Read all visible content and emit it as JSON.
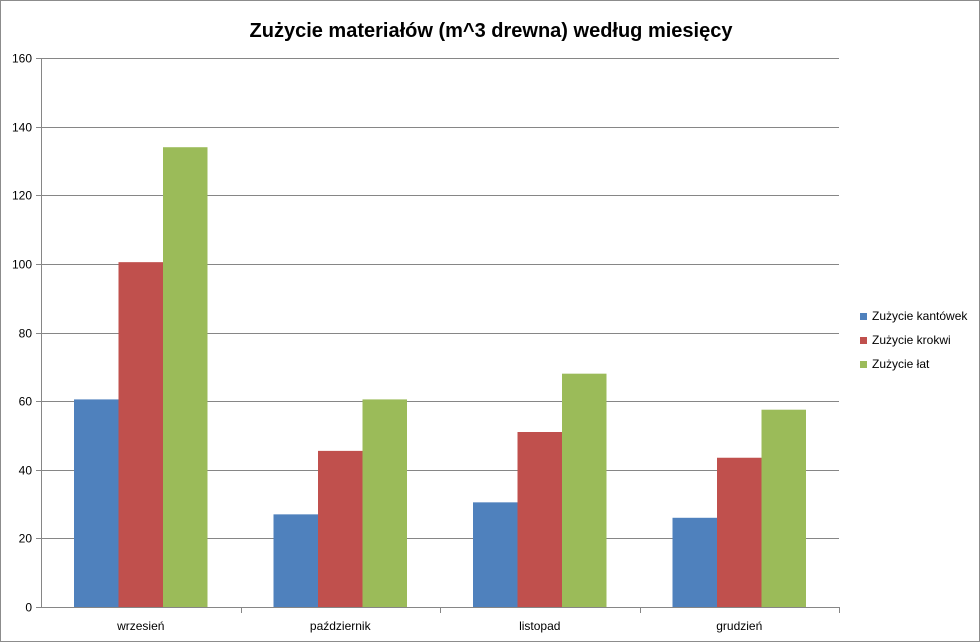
{
  "chart_data": {
    "type": "bar",
    "title": "Zużycie materiałów (m^3 drewna) według miesięcy",
    "xlabel": "",
    "ylabel": "",
    "categories": [
      "wrzesień",
      "październik",
      "listopad",
      "grudzień"
    ],
    "series": [
      {
        "name": "Zużycie kantówek",
        "color": "#4f81bd",
        "values": [
          60.5,
          27,
          30.5,
          26
        ]
      },
      {
        "name": "Zużycie krokwi",
        "color": "#c0504d",
        "values": [
          100.5,
          45.5,
          51,
          43.5
        ]
      },
      {
        "name": "Zużycie łat",
        "color": "#9bbb59",
        "values": [
          134,
          60.5,
          68,
          57.5
        ]
      }
    ],
    "ylim": [
      0,
      160
    ],
    "yticks": [
      0,
      20,
      40,
      60,
      80,
      100,
      120,
      140,
      160
    ],
    "grid": true,
    "legend_position": "right"
  }
}
